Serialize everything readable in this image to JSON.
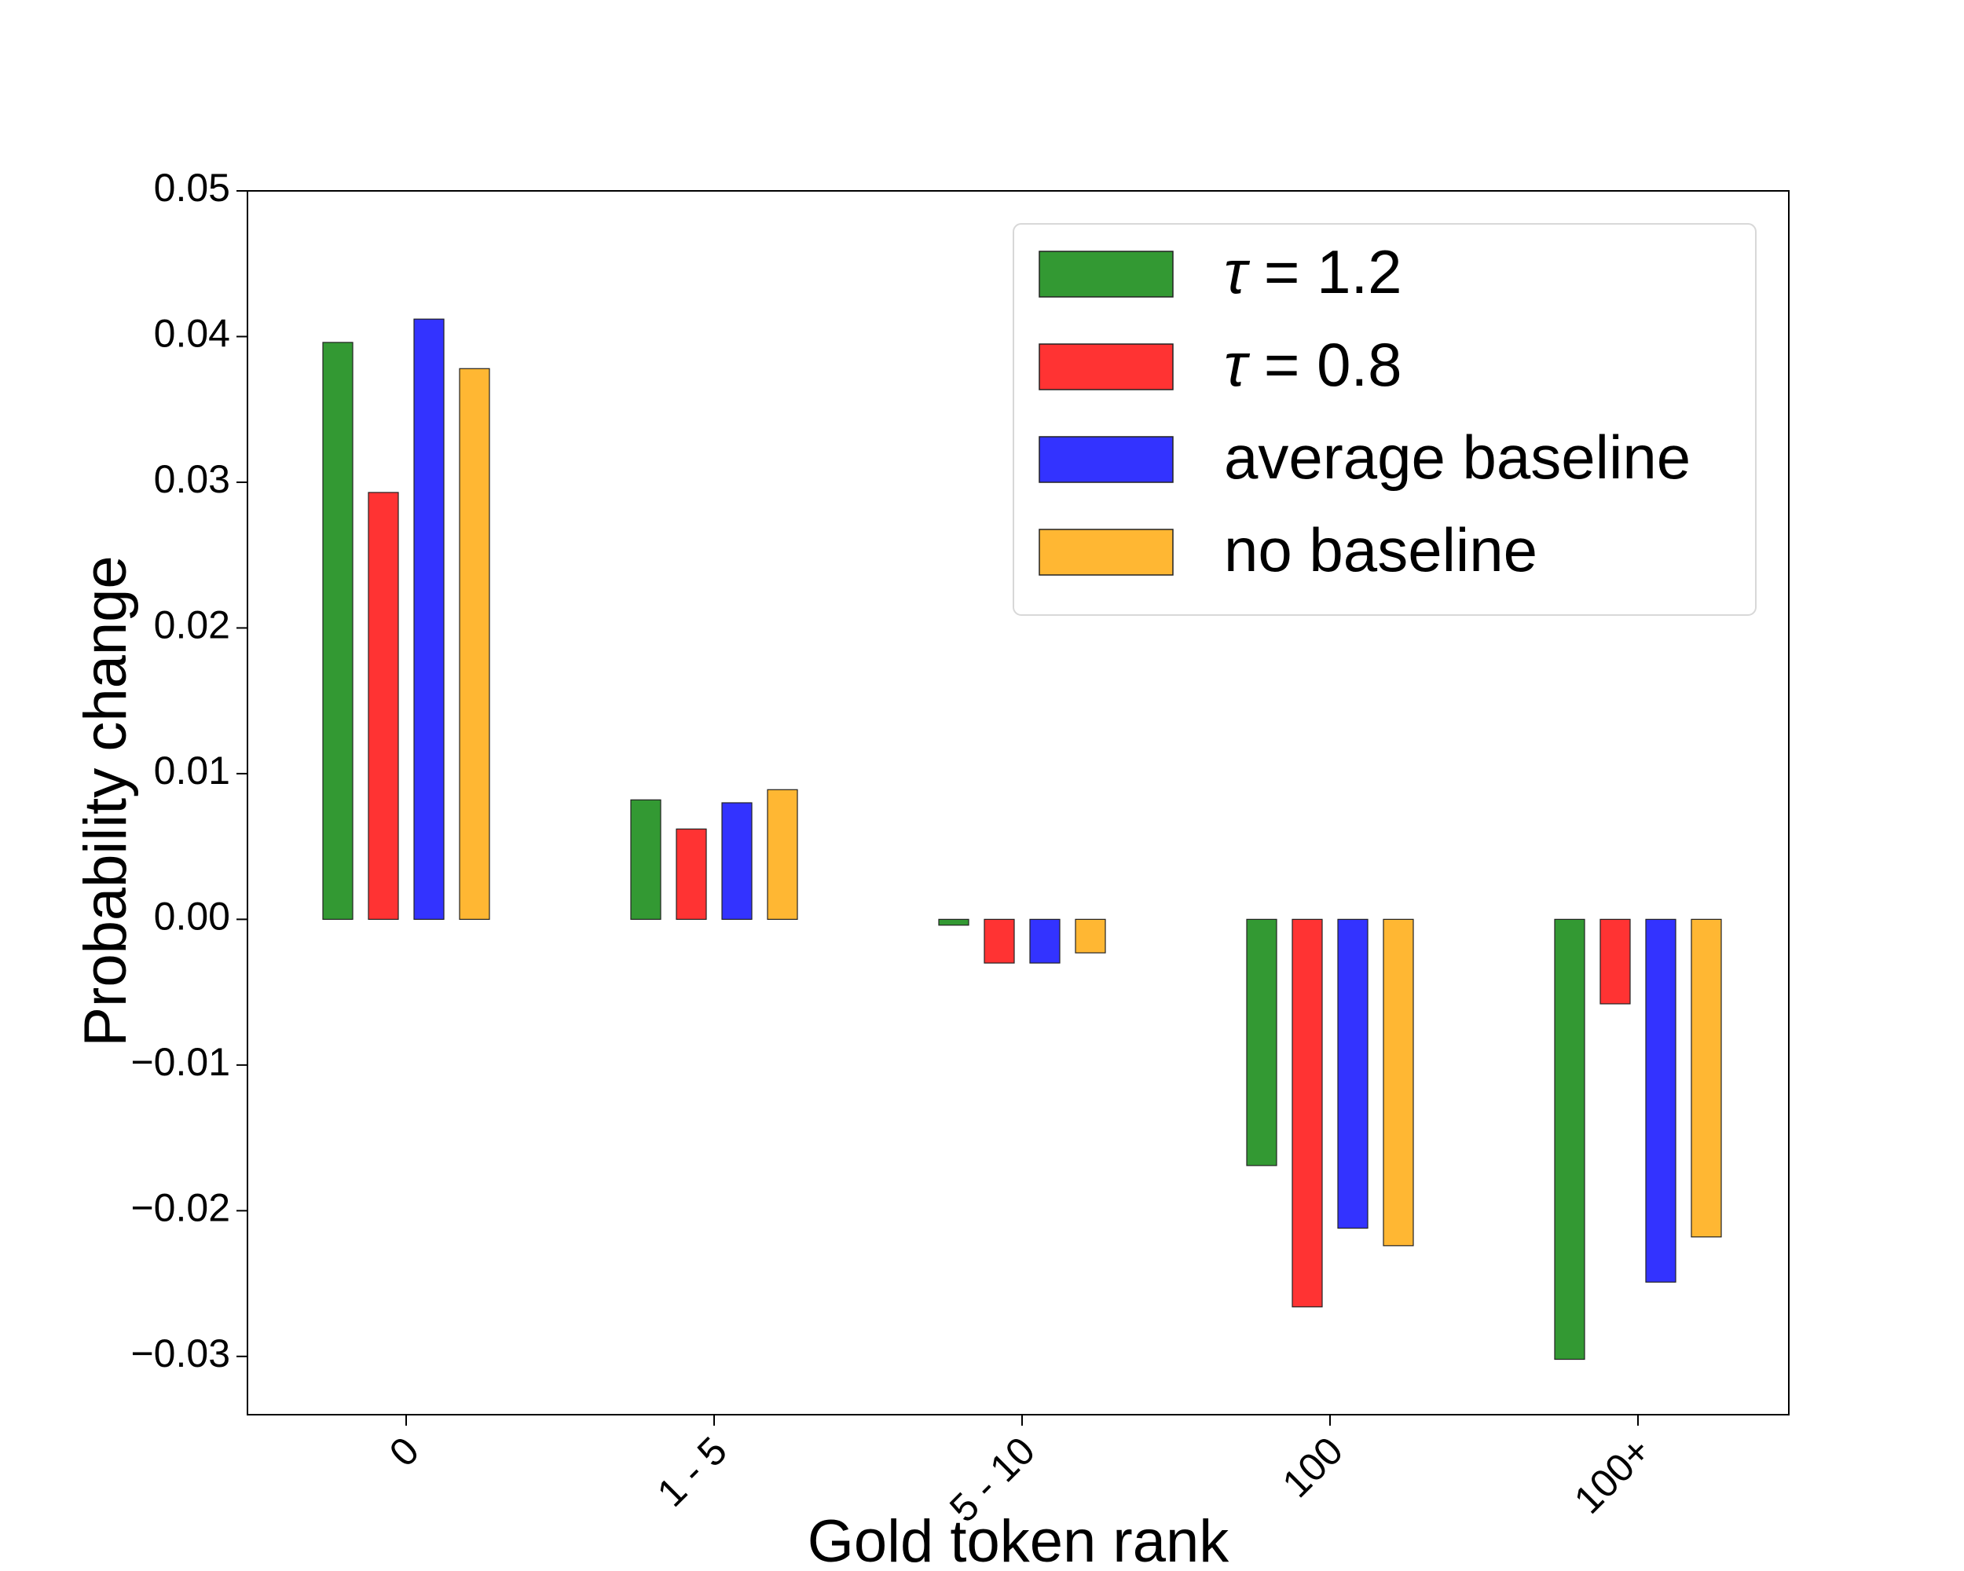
{
  "chart_data": {
    "type": "bar",
    "title": "",
    "xlabel": "Gold token rank",
    "ylabel": "Probability change",
    "categories": [
      "0",
      "1 - 5",
      "5 - 10",
      "100",
      "100+"
    ],
    "ylim": [
      -0.034,
      0.05
    ],
    "yticks": [
      -0.03,
      -0.02,
      -0.01,
      0.0,
      0.01,
      0.02,
      0.03,
      0.04,
      0.05
    ],
    "ytick_labels": [
      "−0.03",
      "−0.02",
      "−0.01",
      "0.00",
      "0.01",
      "0.02",
      "0.03",
      "0.04",
      "0.05"
    ],
    "grid": false,
    "legend_position": "top-right",
    "series": [
      {
        "name": "τ = 1.2",
        "symbol": "τ",
        "rest": " = 1.2",
        "color": "#339933",
        "values": [
          0.0396,
          0.0082,
          -0.0004,
          -0.0169,
          -0.0302
        ]
      },
      {
        "name": "τ = 0.8",
        "symbol": "τ",
        "rest": " = 0.8",
        "color": "#ff3333",
        "values": [
          0.0293,
          0.0062,
          -0.003,
          -0.0266,
          -0.0058
        ]
      },
      {
        "name": "average baseline",
        "symbol": "",
        "rest": "average baseline",
        "color": "#3333ff",
        "values": [
          0.0412,
          0.008,
          -0.003,
          -0.0212,
          -0.0249
        ]
      },
      {
        "name": "no baseline",
        "symbol": "",
        "rest": "no baseline",
        "color": "#ffb733",
        "values": [
          0.0378,
          0.0089,
          -0.0023,
          -0.0224,
          -0.0218
        ]
      }
    ]
  }
}
